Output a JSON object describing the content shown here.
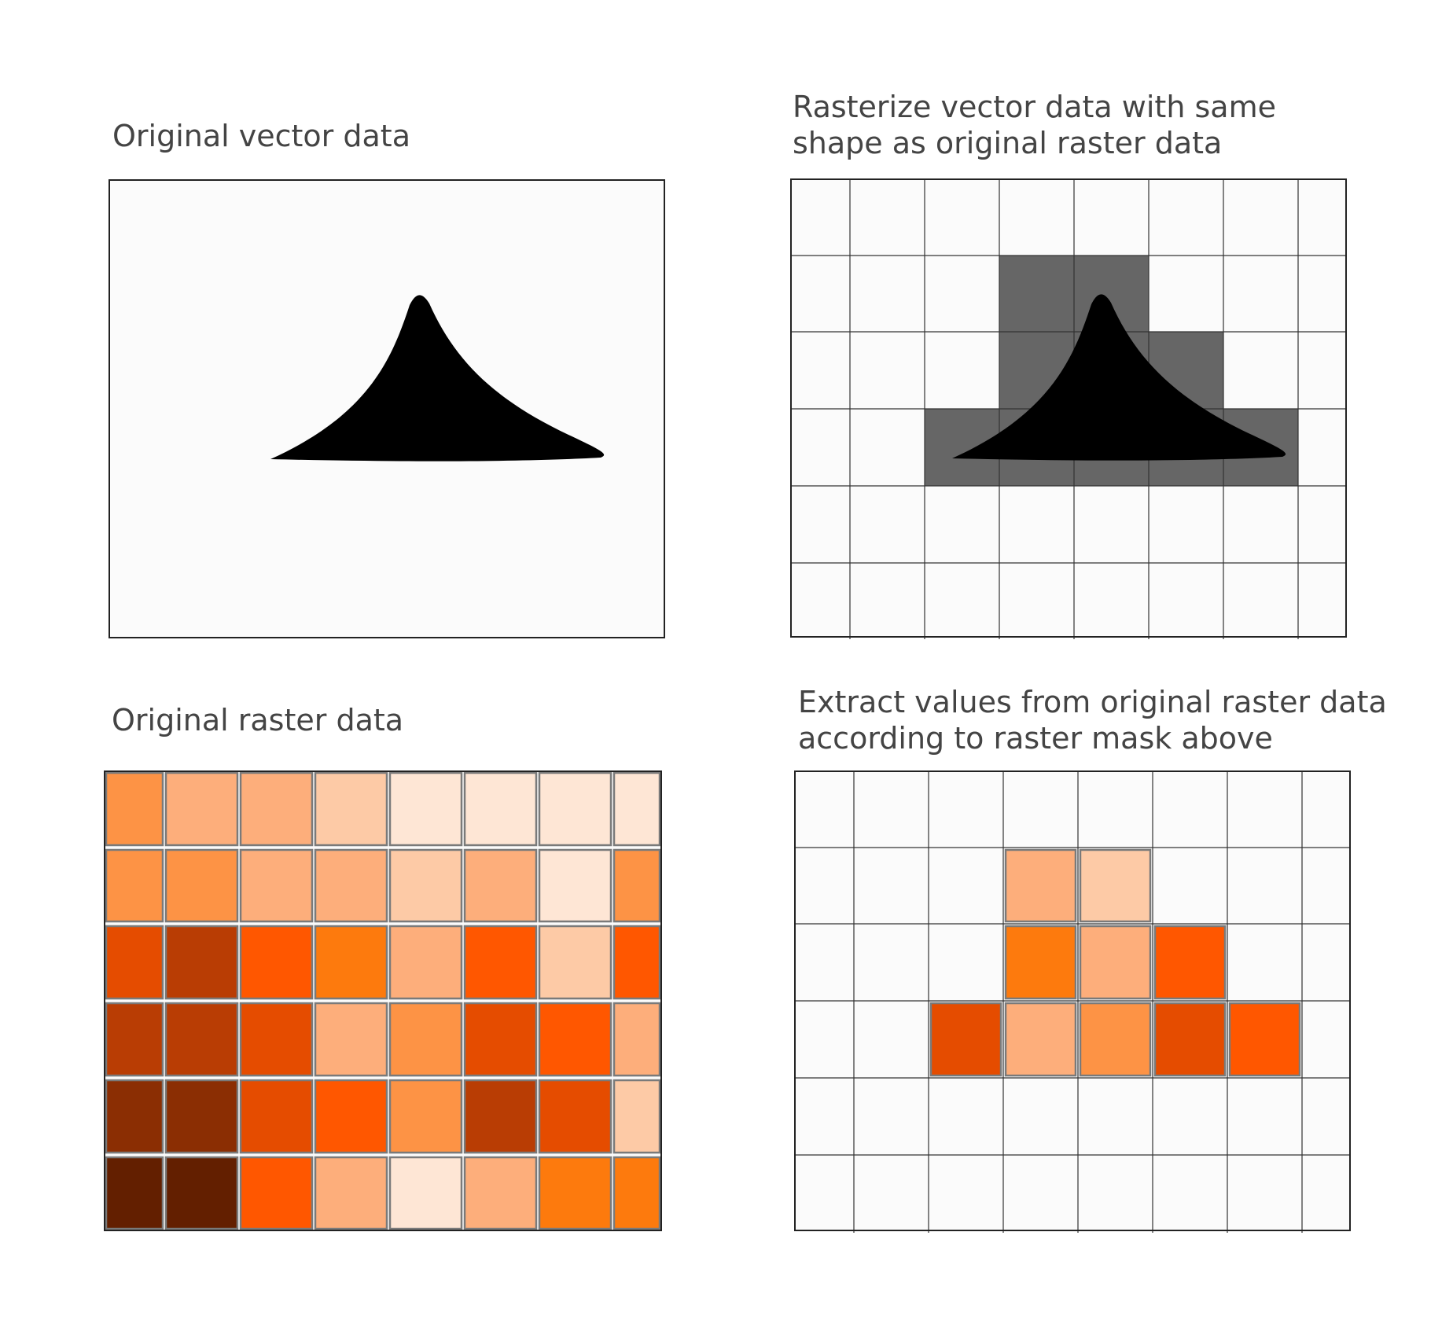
{
  "panels": {
    "vector": {
      "title": "Original vector data"
    },
    "rasterized": {
      "title": "Rasterize vector data with same\nshape as original raster data"
    },
    "raster": {
      "title": "Original raster data"
    },
    "extracted": {
      "title": "Extract values from original raster data\naccording to raster mask above"
    }
  },
  "colors": {
    "shape": "#000000",
    "mask": "#666666",
    "panel_bg": "#fbfbfb",
    "cell_border": "#7a7a7a",
    "grid_line": "#333333"
  },
  "raster": {
    "rows": 6,
    "cols": 8,
    "palette": {
      "0": "#fee6d5",
      "1": "#fdcaa6",
      "2": "#fdae7b",
      "3": "#fd9345",
      "4": "#fd7a0d",
      "5": "#ff5700",
      "6": "#e54c00",
      "7": "#b93d04",
      "8": "#8b2e03",
      "9": "#631f00"
    },
    "values": [
      [
        3,
        2,
        2,
        1,
        0,
        0,
        0,
        0
      ],
      [
        3,
        3,
        2,
        2,
        1,
        2,
        0,
        3
      ],
      [
        6,
        7,
        5,
        4,
        2,
        5,
        1,
        5
      ],
      [
        7,
        7,
        6,
        2,
        3,
        6,
        5,
        2
      ],
      [
        8,
        8,
        6,
        5,
        3,
        7,
        6,
        1
      ],
      [
        9,
        9,
        5,
        2,
        0,
        2,
        4,
        4
      ]
    ]
  },
  "mask": [
    [
      0,
      0,
      0,
      0,
      0,
      0,
      0,
      0
    ],
    [
      0,
      0,
      0,
      1,
      1,
      0,
      0,
      0
    ],
    [
      0,
      0,
      0,
      1,
      1,
      1,
      0,
      0
    ],
    [
      0,
      0,
      1,
      1,
      1,
      1,
      1,
      0
    ],
    [
      0,
      0,
      0,
      0,
      0,
      0,
      0,
      0
    ],
    [
      0,
      0,
      0,
      0,
      0,
      0,
      0,
      0
    ]
  ]
}
